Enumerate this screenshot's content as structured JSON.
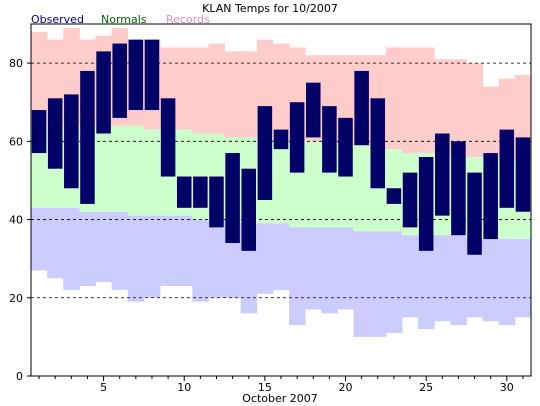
{
  "chart_data": {
    "type": "floating-bar",
    "title": "KLAN Temps for 10/2007",
    "xlabel": "October 2007",
    "ylabel": "",
    "xlim": [
      0.5,
      31.5
    ],
    "ylim": [
      0,
      90
    ],
    "x_ticks": [
      5,
      10,
      15,
      20,
      25,
      30
    ],
    "y_ticks": [
      0,
      20,
      40,
      60,
      80
    ],
    "y_gridlines": [
      20,
      40,
      60,
      80
    ],
    "legend_placement": "top-left",
    "colors": {
      "observed": "#000066",
      "normals": "#ccffcc",
      "records": "#ffcccc",
      "records_low_band": "#ccccff",
      "legend_observed": "#000080",
      "legend_normals": "#006600",
      "legend_records": "#e68ac8"
    },
    "legend": [
      {
        "key": "observed",
        "label": "Observed"
      },
      {
        "key": "normals",
        "label": "Normals"
      },
      {
        "key": "records",
        "label": "Records"
      }
    ],
    "days": [
      1,
      2,
      3,
      4,
      5,
      6,
      7,
      8,
      9,
      10,
      11,
      12,
      13,
      14,
      15,
      16,
      17,
      18,
      19,
      20,
      21,
      22,
      23,
      24,
      25,
      26,
      27,
      28,
      29,
      30,
      31
    ],
    "observed_high": [
      68,
      71,
      72,
      78,
      83,
      85,
      86,
      86,
      71,
      51,
      51,
      51,
      57,
      53,
      69,
      63,
      70,
      75,
      69,
      66,
      78,
      71,
      48,
      52,
      56,
      62,
      60,
      52,
      57,
      63,
      61
    ],
    "observed_low": [
      57,
      53,
      48,
      44,
      62,
      66,
      68,
      68,
      51,
      43,
      43,
      38,
      34,
      32,
      45,
      58,
      52,
      61,
      52,
      51,
      59,
      48,
      44,
      38,
      32,
      41,
      36,
      31,
      35,
      43,
      42
    ],
    "normal_high": [
      65,
      64,
      64,
      64,
      64,
      64,
      64,
      63,
      63,
      63,
      62,
      62,
      61,
      61,
      61,
      60,
      60,
      60,
      59,
      59,
      59,
      58,
      58,
      57,
      57,
      57,
      56,
      56,
      56,
      55,
      55
    ],
    "normal_low": [
      43,
      43,
      43,
      42,
      42,
      42,
      41,
      41,
      41,
      41,
      40,
      40,
      40,
      39,
      39,
      39,
      38,
      38,
      38,
      38,
      37,
      37,
      37,
      36,
      36,
      36,
      36,
      35,
      35,
      35,
      35
    ],
    "record_high": [
      88,
      86,
      89,
      86,
      87,
      89,
      86,
      86,
      84,
      84,
      84,
      85,
      83,
      83,
      86,
      85,
      84,
      82,
      82,
      82,
      82,
      82,
      84,
      84,
      84,
      81,
      81,
      80,
      74,
      76,
      77
    ],
    "record_low": [
      27,
      25,
      22,
      23,
      24,
      22,
      19,
      20,
      23,
      23,
      19,
      20,
      20,
      16,
      21,
      22,
      13,
      17,
      16,
      17,
      10,
      10,
      11,
      15,
      12,
      14,
      13,
      15,
      14,
      13,
      15
    ]
  }
}
